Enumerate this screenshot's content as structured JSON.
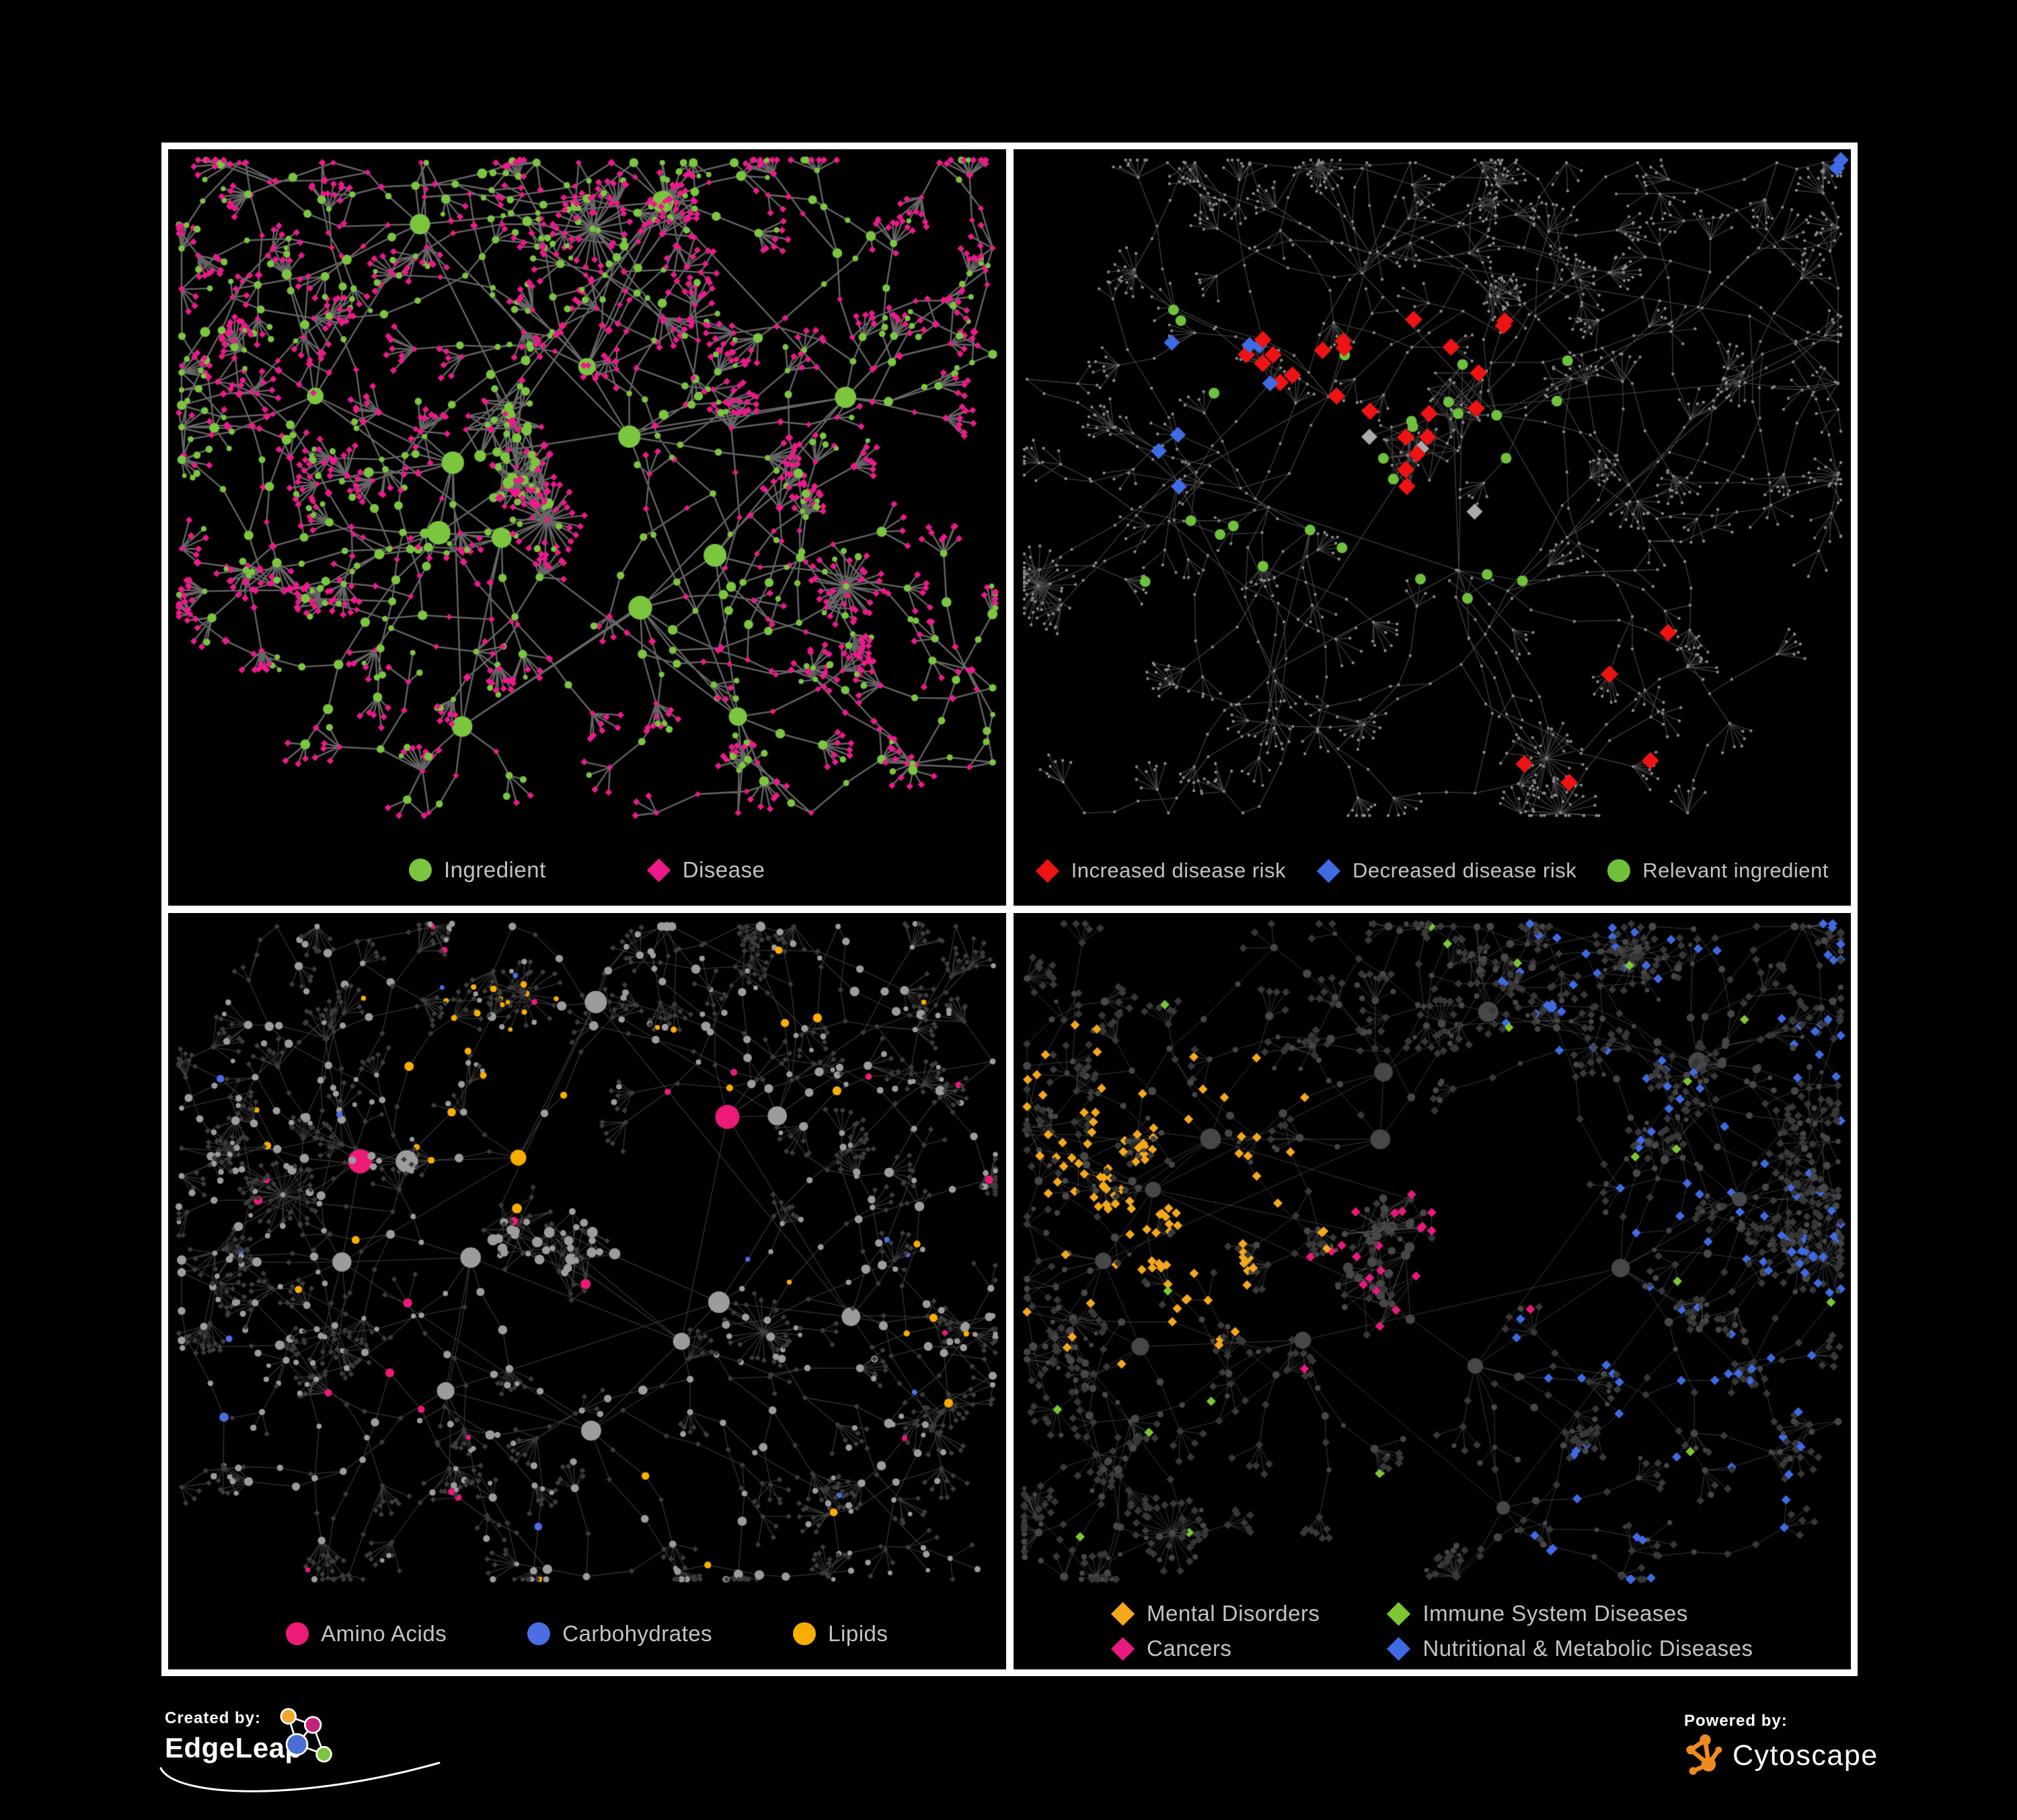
{
  "poster": {
    "background": "#000000",
    "frame_color": "#ffffff",
    "legend_text_color": "#c3c3c3"
  },
  "panels": [
    {
      "id": "ingredient-disease",
      "seed": 101,
      "legend_layout": "row",
      "legend": [
        {
          "label": "Ingredient",
          "shape": "circle",
          "color": "#7cc53f"
        },
        {
          "label": "Disease",
          "shape": "diamond",
          "color": "#ec1a8b"
        }
      ],
      "paint": {
        "scheme": "two-class",
        "edge": "#6c6c6c",
        "edge_width": 2.4,
        "edge_alpha": 0.95,
        "ingredient": "#7cc53f",
        "disease": "#ec1a8b"
      }
    },
    {
      "id": "disease-risk",
      "seed": 202,
      "legend_layout": "row",
      "legend": [
        {
          "label": "Increased disease risk",
          "shape": "diamond",
          "color": "#ee1414"
        },
        {
          "label": "Decreased disease risk",
          "shape": "diamond",
          "color": "#3f6be4"
        },
        {
          "label": "Relevant ingredient",
          "shape": "circle",
          "color": "#6fc13b"
        }
      ],
      "paint": {
        "scheme": "highlight",
        "edge": "#585858",
        "edge_width": 1.1,
        "edge_alpha": 0.85,
        "base": "#8a8a8a",
        "red": "#ee1414",
        "blue": "#3f6be4",
        "silver": "#ababab",
        "green": "#6fc13b"
      }
    },
    {
      "id": "compound-classes",
      "seed": 303,
      "legend_layout": "row",
      "legend": [
        {
          "label": "Amino Acids",
          "shape": "circle",
          "color": "#ed1a78"
        },
        {
          "label": "Carbohydrates",
          "shape": "circle",
          "color": "#4d6ee3"
        },
        {
          "label": "Lipids",
          "shape": "circle",
          "color": "#f9ad00"
        }
      ],
      "paint": {
        "scheme": "compound",
        "edge": "#9a9a9a",
        "edge_width": 1.05,
        "edge_alpha": 0.42,
        "ingredient_default": "#9c9c9c",
        "disease_dim": "#3c3c3c",
        "amino": "#ed1a78",
        "carb": "#4d6ee3",
        "lipid": "#f9ad00"
      }
    },
    {
      "id": "disease-categories",
      "seed": 404,
      "legend_layout": "grid",
      "legend": [
        {
          "label": "Mental Disorders",
          "shape": "diamond",
          "color": "#f5a81b"
        },
        {
          "label": "Immune System Diseases",
          "shape": "diamond",
          "color": "#7dc832"
        },
        {
          "label": "Cancers",
          "shape": "diamond",
          "color": "#e8197f"
        },
        {
          "label": "Nutritional & Metabolic Diseases",
          "shape": "diamond",
          "color": "#3f6be4"
        }
      ],
      "paint": {
        "scheme": "disease-class",
        "edge": "#8f8f8f",
        "edge_width": 1.0,
        "edge_alpha": 0.4,
        "ingredient_dim": "#474747",
        "disease_dim": "#383838",
        "mental": "#f5a81b",
        "immune": "#7dc832",
        "cancer": "#e8197f",
        "metabolic": "#3f6be4"
      }
    }
  ],
  "footer": {
    "created_by_label": "Created by:",
    "created_by_brand": "EdgeLeap",
    "powered_by_label": "Powered by:",
    "powered_by_brand": "Cytoscape",
    "edgeleap_logo_colors": [
      "#f2a52b",
      "#c2237a",
      "#4a6fd4",
      "#7cc53f"
    ],
    "cytoscape_color": "#ef8b1e"
  }
}
